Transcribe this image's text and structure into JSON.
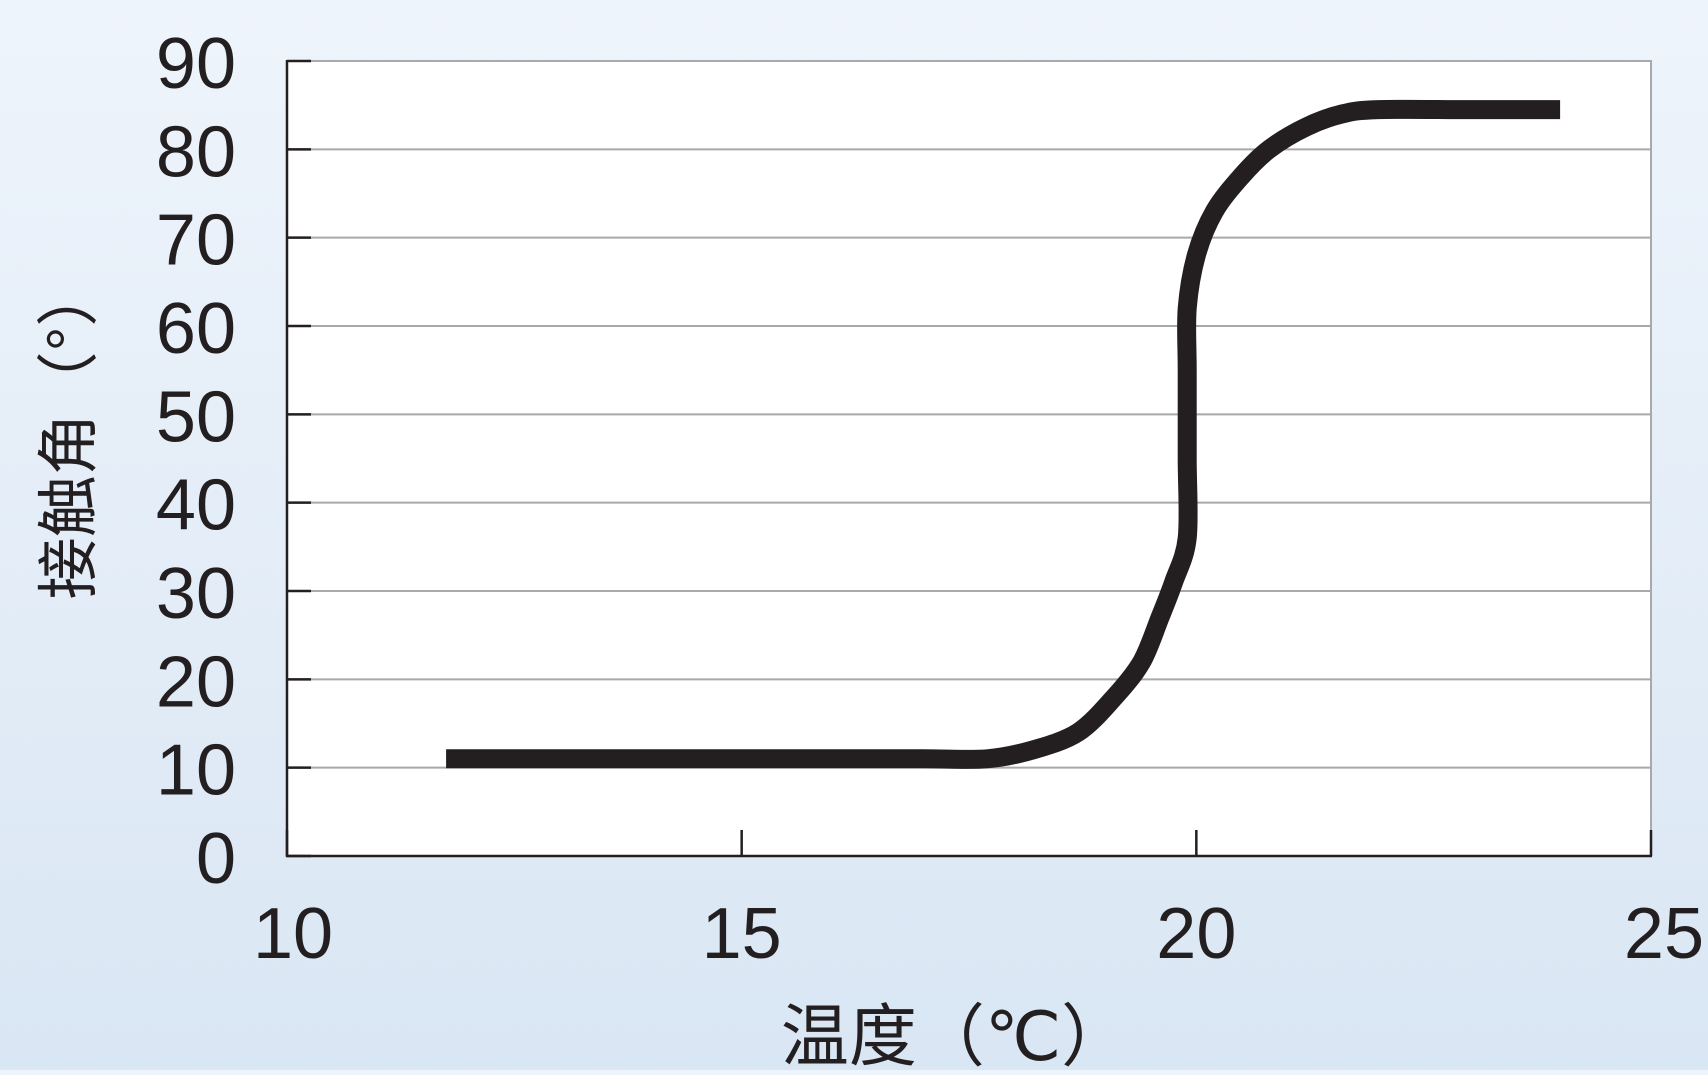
{
  "chart_data": {
    "type": "line",
    "title": "",
    "xlabel": "温度（℃）",
    "ylabel": "接触角（°）",
    "xlim": [
      10,
      25
    ],
    "ylim": [
      0,
      90
    ],
    "x_ticks": [
      10,
      15,
      20,
      25
    ],
    "x_tick_labels": [
      "10",
      "15",
      "20",
      "25"
    ],
    "y_ticks": [
      0,
      10,
      20,
      30,
      40,
      50,
      60,
      70,
      80,
      90
    ],
    "y_tick_labels": [
      "0",
      "10",
      "20",
      "30",
      "40",
      "50",
      "60",
      "70",
      "80",
      "90"
    ],
    "grid": true,
    "legend": "none",
    "series": [
      {
        "x": [
          11.75,
          13,
          14,
          15,
          16,
          17,
          17.7,
          18.2,
          18.7,
          19.1,
          19.4,
          19.6,
          19.75,
          19.9,
          19.9,
          19.9,
          19.9,
          20.0,
          20.2,
          20.5,
          20.8,
          21.2,
          21.6,
          22.0,
          23.0,
          24.0
        ],
        "y": [
          11,
          11,
          11,
          11,
          11,
          11,
          11,
          12,
          14,
          18,
          22,
          27,
          31,
          36,
          45,
          55,
          62,
          68,
          73,
          77,
          80,
          82.5,
          84,
          84.5,
          84.5,
          84.5
        ]
      }
    ],
    "colors": {
      "line": "#231f20",
      "grid": "#a7a9ac",
      "axis": "#231f20",
      "plot_bg": "#ffffff"
    }
  }
}
